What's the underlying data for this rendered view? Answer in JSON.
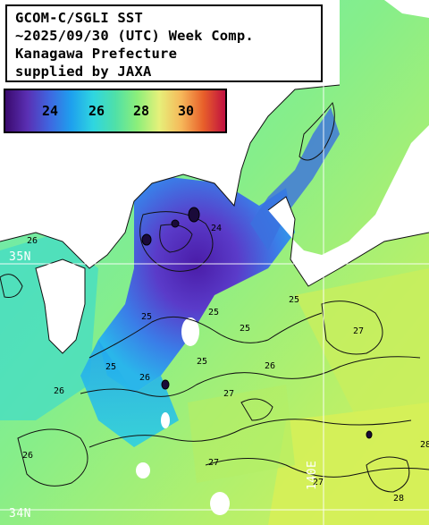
{
  "title_lines": [
    "GCOM-C/SGLI SST",
    "~2025/09/30 (UTC) Week Comp.",
    "Kanagawa Prefecture",
    "supplied by JAXA"
  ],
  "colorbar": {
    "ticks": [
      "24",
      "26",
      "28",
      "30"
    ],
    "colors": [
      "#3a0a6e",
      "#5a2fb3",
      "#3f66e0",
      "#1ea0ee",
      "#2fd6e0",
      "#4fe0a8",
      "#8cef7a",
      "#e6f07a",
      "#f6b85a",
      "#e8602a",
      "#c01040"
    ]
  },
  "gridlines": {
    "lat_labels": [
      "35N",
      "34N"
    ],
    "lon_labels": [
      "140E"
    ]
  },
  "contour_labels": [
    "24",
    "25",
    "25",
    "25",
    "25",
    "25",
    "25",
    "26",
    "26",
    "26",
    "26",
    "26",
    "27",
    "27",
    "27",
    "27",
    "28",
    "28"
  ],
  "colors": {
    "land": "#ffffff",
    "coast_outline": "#000000",
    "grid": "#ffffff"
  }
}
